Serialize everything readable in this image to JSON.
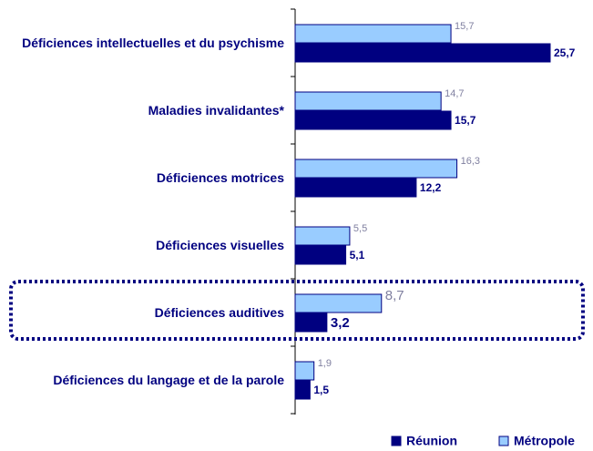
{
  "chart_data": {
    "type": "bar",
    "orientation": "horizontal",
    "categories": [
      "Déficiences intellectuelles et du psychisme",
      "Maladies invalidantes*",
      "Déficiences motrices",
      "Déficiences visuelles",
      "Déficiences auditives",
      "Déficiences du langage et de la parole"
    ],
    "series": [
      {
        "name": "Métropole",
        "color": "#99ccff",
        "values": [
          15.7,
          14.7,
          16.3,
          5.5,
          8.7,
          1.9
        ],
        "value_labels": [
          "15,7",
          "14,7",
          "16,3",
          "5,5",
          "8,7",
          "1,9"
        ]
      },
      {
        "name": "Réunion",
        "color": "#000080",
        "values": [
          25.7,
          15.7,
          12.2,
          5.1,
          3.2,
          1.5
        ],
        "value_labels": [
          "25,7",
          "15,7",
          "12,2",
          "5,1",
          "3,2",
          "1,5"
        ]
      }
    ],
    "xlim": [
      0,
      26
    ],
    "highlight": 4,
    "legend": "bottom-right"
  }
}
